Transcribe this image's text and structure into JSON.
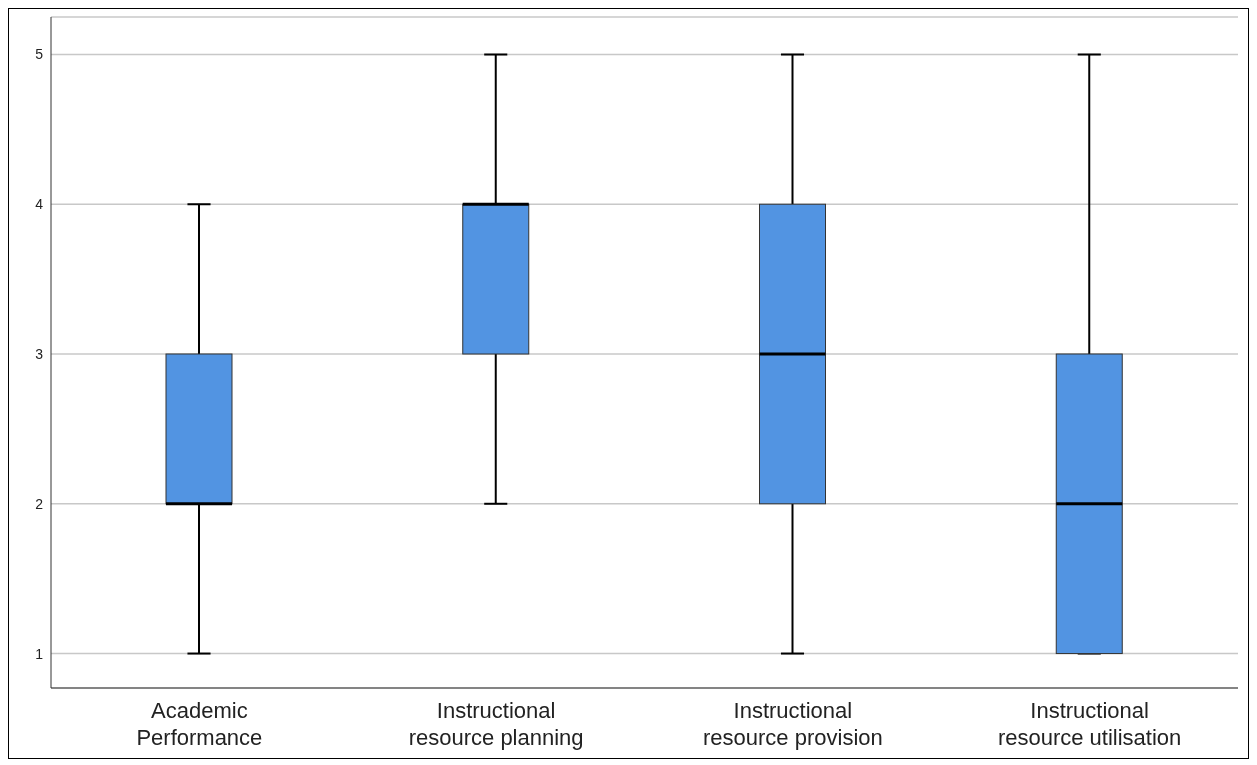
{
  "chart_data": {
    "type": "box",
    "categories": [
      "Academic Performance",
      "Instructional resource planning",
      "Instructional resource provision",
      "Instructional resource utilisation"
    ],
    "boxes": [
      {
        "low": 1,
        "q1": 2,
        "median": 2,
        "q3": 3,
        "high": 4
      },
      {
        "low": 2,
        "q1": 3,
        "median": 4,
        "q3": 4,
        "high": 5
      },
      {
        "low": 1,
        "q1": 2,
        "median": 3,
        "q3": 4,
        "high": 5
      },
      {
        "low": 1,
        "q1": 1,
        "median": 2,
        "q3": 3,
        "high": 5
      }
    ],
    "color": "#5294e2",
    "ylim": [
      0.77,
      5.25
    ],
    "yticks": [
      1,
      2,
      3,
      4,
      5
    ],
    "grid": "y"
  }
}
